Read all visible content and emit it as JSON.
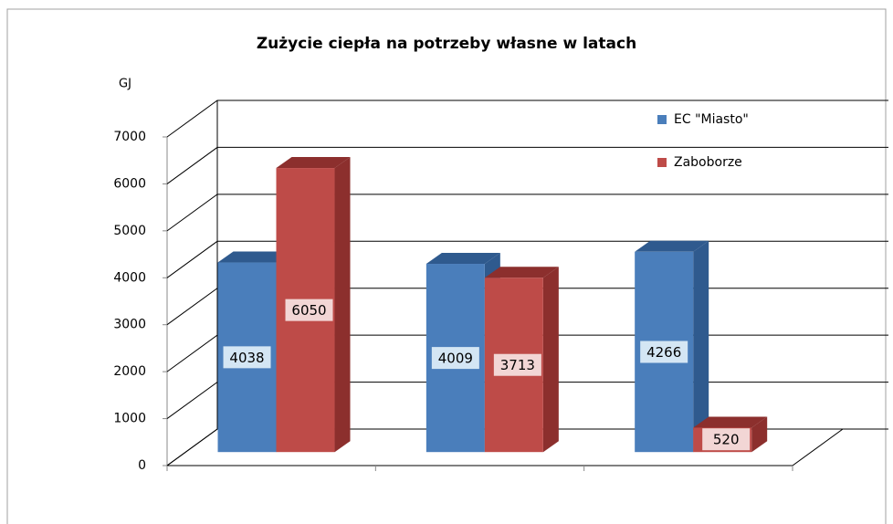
{
  "chart_data": {
    "type": "bar3d",
    "title": "Zużycie ciepła na potrzeby własne w latach",
    "y_label": "GJ",
    "categories": [
      null,
      null,
      null
    ],
    "series": [
      {
        "name": "EC \"Miasto\"",
        "color": "#4a7ebb",
        "side": "#2f5a8e",
        "values": [
          4038,
          4009,
          4266
        ]
      },
      {
        "name": "Zaboborze",
        "color": "#be4b48",
        "side": "#8c2f2d",
        "values": [
          6050,
          3713,
          520
        ]
      }
    ],
    "ylim": [
      0,
      7000
    ],
    "yticks": [
      0,
      1000,
      2000,
      3000,
      4000,
      5000,
      6000,
      7000
    ],
    "grid": true,
    "legend": "top-right"
  }
}
